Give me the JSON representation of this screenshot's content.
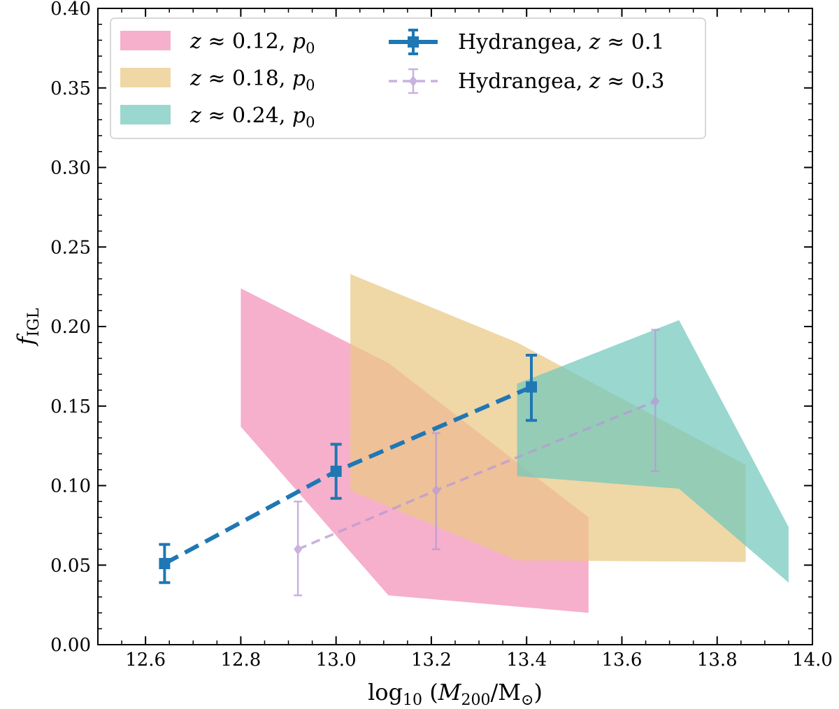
{
  "chart_data": {
    "type": "area",
    "xlabel_parts": {
      "base": "log",
      "sub": "10",
      "open": " (",
      "var": "M",
      "var_sub": "200",
      "slash": "/M",
      "solar": "⊙",
      "close": ")"
    },
    "ylabel_parts": {
      "var": "f",
      "sub": "IGL"
    },
    "xlim": [
      12.5,
      14.0
    ],
    "ylim": [
      0.0,
      0.4
    ],
    "xticks": [
      "12.6",
      "12.8",
      "13.0",
      "13.2",
      "13.4",
      "13.6",
      "13.8",
      "14.0"
    ],
    "yticks": [
      "0.00",
      "0.05",
      "0.10",
      "0.15",
      "0.20",
      "0.25",
      "0.30",
      "0.35",
      "0.40"
    ],
    "legend_position": "top-left",
    "bands": [
      {
        "name": "z≈0.12",
        "z_label": "z",
        "approx": " ≈ 0.12, ",
        "p_label": "p",
        "p_sub": "0",
        "color": "#f291b8",
        "polygon": [
          [
            12.8,
            0.224
          ],
          [
            13.11,
            0.177
          ],
          [
            13.53,
            0.08
          ],
          [
            13.53,
            0.02
          ],
          [
            13.11,
            0.031
          ],
          [
            12.8,
            0.137
          ]
        ]
      },
      {
        "name": "z≈0.18",
        "z_label": "z",
        "approx": " ≈ 0.18, ",
        "p_label": "p",
        "p_sub": "0",
        "color": "#eac784",
        "polygon": [
          [
            13.03,
            0.233
          ],
          [
            13.38,
            0.19
          ],
          [
            13.86,
            0.113
          ],
          [
            13.86,
            0.052
          ],
          [
            13.38,
            0.053
          ],
          [
            13.03,
            0.097
          ]
        ]
      },
      {
        "name": "z≈0.24",
        "z_label": "z",
        "approx": " ≈ 0.24, ",
        "p_label": "p",
        "p_sub": "0",
        "color": "#72c7bd",
        "polygon": [
          [
            13.38,
            0.164
          ],
          [
            13.72,
            0.204
          ],
          [
            13.95,
            0.074
          ],
          [
            13.95,
            0.039
          ],
          [
            13.72,
            0.098
          ],
          [
            13.38,
            0.106
          ]
        ]
      }
    ],
    "series": [
      {
        "name": "Hydrangea, z≈0.1",
        "label_text": "Hydrangea, ",
        "label_z": "z",
        "label_approx": " ≈ 0.1",
        "color": "#1f77b4",
        "style": "dashed-thick",
        "marker": "square",
        "x": [
          12.64,
          13.0,
          13.41
        ],
        "y": [
          0.051,
          0.109,
          0.162
        ],
        "yerr_low": [
          0.039,
          0.092,
          0.141
        ],
        "yerr_high": [
          0.063,
          0.126,
          0.182
        ]
      },
      {
        "name": "Hydrangea, z≈0.3",
        "label_text": "Hydrangea, ",
        "label_z": "z",
        "label_approx": " ≈ 0.3",
        "color": "#b899d3",
        "style": "dashed-thin",
        "marker": "diamond",
        "x": [
          12.92,
          13.21,
          13.67
        ],
        "y": [
          0.06,
          0.097,
          0.153
        ],
        "yerr_low": [
          0.031,
          0.06,
          0.109
        ],
        "yerr_high": [
          0.09,
          0.133,
          0.198
        ]
      }
    ]
  }
}
